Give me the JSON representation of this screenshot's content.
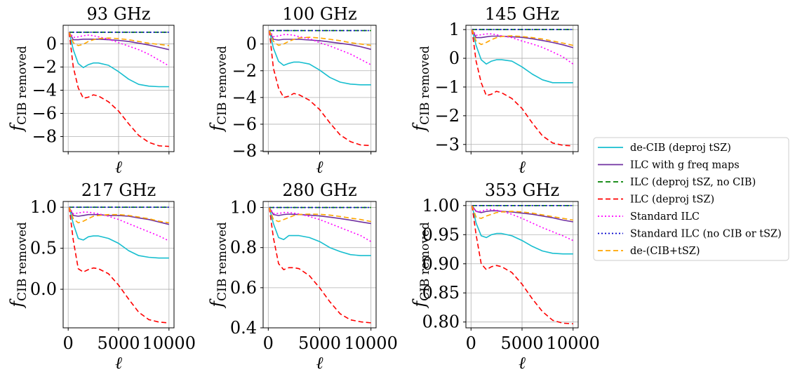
{
  "chart_data": [
    {
      "type": "line",
      "title": "93 GHz",
      "xlabel": "ℓ",
      "ylabel_main": "f",
      "ylabel_sub": "CIB removed",
      "xlim": [
        -500,
        10500
      ],
      "ylim": [
        -9.3,
        1.6
      ],
      "xticks": [
        0,
        5000,
        10000
      ],
      "yticks": [
        0,
        -2,
        -4,
        -6,
        -8
      ],
      "ytick_labels": [
        "0",
        "−2",
        "−4",
        "−6",
        "−8"
      ],
      "show_xtick_labels": false,
      "grid": true,
      "x": [
        100,
        500,
        1000,
        1500,
        2000,
        2500,
        3000,
        4000,
        5000,
        6000,
        7000,
        8000,
        9000,
        10000
      ],
      "series": [
        {
          "name": "de-CIB (deproj tSZ)",
          "values": [
            1,
            -0.5,
            -1.7,
            -2.05,
            -1.8,
            -1.65,
            -1.65,
            -1.85,
            -2.4,
            -3.05,
            -3.5,
            -3.65,
            -3.7,
            -3.7
          ]
        },
        {
          "name": "ILC with g freq maps",
          "values": [
            1,
            0.35,
            0.35,
            0.4,
            0.4,
            0.4,
            0.4,
            0.35,
            0.3,
            0.2,
            0.05,
            -0.1,
            -0.3,
            -0.5
          ]
        },
        {
          "name": "ILC (deproj tSZ, no CIB)",
          "values": [
            1,
            1,
            1,
            1,
            1,
            1,
            1,
            1,
            1,
            1,
            1,
            1,
            1,
            1
          ]
        },
        {
          "name": "ILC (deproj tSZ)",
          "values": [
            1,
            -2.0,
            -3.8,
            -4.7,
            -4.6,
            -4.4,
            -4.5,
            -5.0,
            -5.8,
            -6.9,
            -7.9,
            -8.5,
            -8.8,
            -8.85
          ]
        },
        {
          "name": "Standard ILC",
          "values": [
            1,
            0.55,
            0.6,
            0.7,
            0.75,
            0.7,
            0.6,
            0.4,
            0.1,
            -0.2,
            -0.5,
            -0.9,
            -1.4,
            -1.9
          ]
        },
        {
          "name": "Standard ILC (no CIB or tSZ)",
          "values": [
            1,
            1,
            1,
            1,
            1,
            1,
            1,
            1,
            1,
            1,
            1,
            1,
            1,
            1
          ]
        },
        {
          "name": "de-(CIB+tSZ)",
          "values": [
            1,
            0.1,
            -0.15,
            -0.05,
            0.2,
            0.35,
            0.45,
            0.5,
            0.45,
            0.35,
            0.2,
            0.05,
            -0.05,
            -0.15
          ]
        }
      ]
    },
    {
      "type": "line",
      "title": "100 GHz",
      "xlabel": "ℓ",
      "ylabel_main": "f",
      "ylabel_sub": "CIB removed",
      "xlim": [
        -500,
        10500
      ],
      "ylim": [
        -8.05,
        1.4
      ],
      "xticks": [
        0,
        5000,
        10000
      ],
      "yticks": [
        0,
        -2,
        -4,
        -6,
        -8
      ],
      "ytick_labels": [
        "0",
        "−2",
        "−4",
        "−6",
        "−8"
      ],
      "show_xtick_labels": false,
      "grid": true,
      "x": [
        100,
        500,
        1000,
        1500,
        2000,
        2500,
        3000,
        4000,
        5000,
        6000,
        7000,
        8000,
        9000,
        10000
      ],
      "series": [
        {
          "name": "de-CIB (deproj tSZ)",
          "values": [
            1,
            -0.3,
            -1.3,
            -1.6,
            -1.45,
            -1.35,
            -1.35,
            -1.5,
            -1.95,
            -2.5,
            -2.85,
            -3.0,
            -3.05,
            -3.05
          ]
        },
        {
          "name": "ILC with g freq maps",
          "values": [
            1,
            0.35,
            0.3,
            0.35,
            0.35,
            0.35,
            0.35,
            0.3,
            0.25,
            0.15,
            0.05,
            -0.05,
            -0.2,
            -0.4
          ]
        },
        {
          "name": "ILC (deproj tSZ, no CIB)",
          "values": [
            1,
            1,
            1,
            1,
            1,
            1,
            1,
            1,
            1,
            1,
            1,
            1,
            1,
            1
          ]
        },
        {
          "name": "ILC (deproj tSZ)",
          "values": [
            1,
            -1.8,
            -3.3,
            -4.0,
            -3.9,
            -3.7,
            -3.8,
            -4.2,
            -4.9,
            -5.9,
            -6.8,
            -7.3,
            -7.55,
            -7.6
          ]
        },
        {
          "name": "Standard ILC",
          "values": [
            1,
            0.55,
            0.6,
            0.7,
            0.7,
            0.65,
            0.55,
            0.4,
            0.1,
            -0.15,
            -0.45,
            -0.75,
            -1.15,
            -1.55
          ]
        },
        {
          "name": "Standard ILC (no CIB or tSZ)",
          "values": [
            1,
            1,
            1,
            1,
            1,
            1,
            1,
            1,
            1,
            1,
            1,
            1,
            1,
            1
          ]
        },
        {
          "name": "de-(CIB+tSZ)",
          "values": [
            1,
            0.2,
            -0.1,
            0.0,
            0.2,
            0.35,
            0.45,
            0.5,
            0.45,
            0.35,
            0.25,
            0.1,
            0.0,
            -0.1
          ]
        }
      ]
    },
    {
      "type": "line",
      "title": "145 GHz",
      "xlabel": "ℓ",
      "ylabel_main": "f",
      "ylabel_sub": "CIB removed",
      "xlim": [
        -500,
        10500
      ],
      "ylim": [
        -3.25,
        1.15
      ],
      "xticks": [
        0,
        5000,
        10000
      ],
      "yticks": [
        1,
        0,
        -1,
        -2,
        -3
      ],
      "ytick_labels": [
        "1",
        "0",
        "−1",
        "−2",
        "−3"
      ],
      "show_xtick_labels": false,
      "grid": true,
      "x": [
        100,
        500,
        1000,
        1500,
        2000,
        2500,
        3000,
        4000,
        5000,
        6000,
        7000,
        8000,
        9000,
        10000
      ],
      "series": [
        {
          "name": "de-CIB (deproj tSZ)",
          "values": [
            1,
            0.45,
            -0.05,
            -0.2,
            -0.1,
            -0.05,
            -0.05,
            -0.1,
            -0.3,
            -0.55,
            -0.75,
            -0.85,
            -0.85,
            -0.85
          ]
        },
        {
          "name": "ILC with g freq maps",
          "values": [
            1,
            0.72,
            0.72,
            0.75,
            0.77,
            0.77,
            0.77,
            0.75,
            0.73,
            0.68,
            0.62,
            0.55,
            0.47,
            0.37
          ]
        },
        {
          "name": "ILC (deproj tSZ, no CIB)",
          "values": [
            1,
            1,
            1,
            1,
            1,
            1,
            1,
            1,
            1,
            1,
            1,
            1,
            1,
            1
          ]
        },
        {
          "name": "ILC (deproj tSZ)",
          "values": [
            1,
            -0.1,
            -0.85,
            -1.3,
            -1.25,
            -1.15,
            -1.2,
            -1.4,
            -1.75,
            -2.25,
            -2.7,
            -2.95,
            -3.03,
            -3.05
          ]
        },
        {
          "name": "Standard ILC",
          "values": [
            1,
            0.8,
            0.82,
            0.85,
            0.85,
            0.82,
            0.78,
            0.72,
            0.6,
            0.5,
            0.38,
            0.22,
            0.05,
            -0.2
          ]
        },
        {
          "name": "Standard ILC (no CIB or tSZ)",
          "values": [
            1,
            1,
            1,
            1,
            1,
            1,
            1,
            1,
            1,
            1,
            1,
            1,
            1,
            1
          ]
        },
        {
          "name": "de-(CIB+tSZ)",
          "values": [
            1,
            0.6,
            0.48,
            0.55,
            0.65,
            0.72,
            0.76,
            0.78,
            0.76,
            0.72,
            0.67,
            0.6,
            0.53,
            0.45
          ]
        }
      ]
    },
    {
      "type": "line",
      "title": "217 GHz",
      "xlabel": "ℓ",
      "ylabel_main": "f",
      "ylabel_sub": "CIB removed",
      "xlim": [
        -500,
        10500
      ],
      "ylim": [
        -0.47,
        1.07
      ],
      "xticks": [
        0,
        5000,
        10000
      ],
      "xtick_labels": [
        "0",
        "5000",
        "10000"
      ],
      "yticks": [
        1.0,
        0.5,
        0.0
      ],
      "ytick_labels": [
        "1.0",
        "0.5",
        "0.0"
      ],
      "show_xtick_labels": true,
      "grid": true,
      "x": [
        100,
        500,
        1000,
        1500,
        2000,
        2500,
        3000,
        4000,
        5000,
        6000,
        7000,
        8000,
        9000,
        10000
      ],
      "series": [
        {
          "name": "de-CIB (deproj tSZ)",
          "values": [
            1,
            0.8,
            0.62,
            0.6,
            0.64,
            0.65,
            0.65,
            0.62,
            0.56,
            0.47,
            0.41,
            0.39,
            0.38,
            0.38
          ]
        },
        {
          "name": "ILC with g freq maps",
          "values": [
            1,
            0.9,
            0.89,
            0.9,
            0.91,
            0.91,
            0.91,
            0.9,
            0.9,
            0.89,
            0.87,
            0.85,
            0.82,
            0.79
          ]
        },
        {
          "name": "ILC (deproj tSZ, no CIB)",
          "values": [
            1,
            1,
            1,
            1,
            1,
            1,
            1,
            1,
            1,
            1,
            1,
            1,
            1,
            1
          ]
        },
        {
          "name": "ILC (deproj tSZ)",
          "values": [
            1,
            0.6,
            0.25,
            0.21,
            0.24,
            0.26,
            0.25,
            0.19,
            0.05,
            -0.12,
            -0.28,
            -0.37,
            -0.4,
            -0.41
          ]
        },
        {
          "name": "Standard ILC",
          "values": [
            1,
            0.92,
            0.93,
            0.94,
            0.94,
            0.93,
            0.92,
            0.89,
            0.85,
            0.8,
            0.75,
            0.7,
            0.65,
            0.59
          ]
        },
        {
          "name": "Standard ILC (no CIB or tSZ)",
          "values": [
            1,
            1,
            1,
            1,
            1,
            1,
            1,
            1,
            1,
            1,
            1,
            1,
            1,
            1
          ]
        },
        {
          "name": "de-(CIB+tSZ)",
          "values": [
            1,
            0.86,
            0.81,
            0.83,
            0.86,
            0.89,
            0.9,
            0.91,
            0.91,
            0.9,
            0.88,
            0.86,
            0.83,
            0.81
          ]
        }
      ]
    },
    {
      "type": "line",
      "title": "280 GHz",
      "xlabel": "ℓ",
      "ylabel_main": "f",
      "ylabel_sub": "CIB removed",
      "xlim": [
        -500,
        10500
      ],
      "ylim": [
        0.4,
        1.03
      ],
      "xticks": [
        0,
        5000,
        10000
      ],
      "xtick_labels": [
        "0",
        "5000",
        "10000"
      ],
      "yticks": [
        1.0,
        0.8,
        0.6,
        0.4
      ],
      "ytick_labels": [
        "1.0",
        "0.8",
        "0.6",
        "0.4"
      ],
      "show_xtick_labels": true,
      "grid": true,
      "x": [
        100,
        500,
        1000,
        1500,
        2000,
        2500,
        3000,
        4000,
        5000,
        6000,
        7000,
        8000,
        9000,
        10000
      ],
      "series": [
        {
          "name": "de-CIB (deproj tSZ)",
          "values": [
            1,
            0.92,
            0.85,
            0.84,
            0.86,
            0.86,
            0.86,
            0.85,
            0.83,
            0.8,
            0.78,
            0.765,
            0.76,
            0.76
          ]
        },
        {
          "name": "ILC with g freq maps",
          "values": [
            1,
            0.965,
            0.96,
            0.965,
            0.967,
            0.966,
            0.965,
            0.962,
            0.958,
            0.952,
            0.945,
            0.937,
            0.928,
            0.92
          ]
        },
        {
          "name": "ILC (deproj tSZ, no CIB)",
          "values": [
            1,
            1,
            1,
            1,
            1,
            1,
            1,
            1,
            1,
            1,
            1,
            1,
            1,
            1
          ]
        },
        {
          "name": "ILC (deproj tSZ)",
          "values": [
            1,
            0.85,
            0.72,
            0.69,
            0.7,
            0.7,
            0.695,
            0.66,
            0.6,
            0.53,
            0.47,
            0.44,
            0.43,
            0.425
          ]
        },
        {
          "name": "Standard ILC",
          "values": [
            1,
            0.97,
            0.97,
            0.975,
            0.975,
            0.972,
            0.968,
            0.955,
            0.94,
            0.92,
            0.9,
            0.88,
            0.86,
            0.83
          ]
        },
        {
          "name": "Standard ILC (no CIB or tSZ)",
          "values": [
            1,
            1,
            1,
            1,
            1,
            1,
            1,
            1,
            1,
            1,
            1,
            1,
            1,
            1
          ]
        },
        {
          "name": "de-(CIB+tSZ)",
          "values": [
            1,
            0.94,
            0.93,
            0.94,
            0.95,
            0.96,
            0.965,
            0.967,
            0.966,
            0.962,
            0.955,
            0.947,
            0.94,
            0.93
          ]
        }
      ]
    },
    {
      "type": "line",
      "title": "353 GHz",
      "xlabel": "ℓ",
      "ylabel_main": "f",
      "ylabel_sub": "CIB removed",
      "xlim": [
        -500,
        10500
      ],
      "ylim": [
        0.79,
        1.007
      ],
      "xticks": [
        0,
        5000,
        10000
      ],
      "xtick_labels": [
        "0",
        "5000",
        "10000"
      ],
      "yticks": [
        1.0,
        0.95,
        0.9,
        0.85,
        0.8
      ],
      "ytick_labels": [
        "1.00",
        "0.95",
        "0.90",
        "0.85",
        "0.80"
      ],
      "show_xtick_labels": true,
      "grid": true,
      "x": [
        100,
        500,
        1000,
        1500,
        2000,
        2500,
        3000,
        4000,
        5000,
        6000,
        7000,
        8000,
        9000,
        10000
      ],
      "series": [
        {
          "name": "de-CIB (deproj tSZ)",
          "values": [
            1,
            0.97,
            0.948,
            0.945,
            0.95,
            0.952,
            0.952,
            0.948,
            0.94,
            0.93,
            0.922,
            0.918,
            0.917,
            0.917
          ]
        },
        {
          "name": "ILC with g freq maps",
          "values": [
            1,
            0.99,
            0.988,
            0.99,
            0.991,
            0.991,
            0.99,
            0.989,
            0.987,
            0.985,
            0.982,
            0.979,
            0.975,
            0.972
          ]
        },
        {
          "name": "ILC (deproj tSZ, no CIB)",
          "values": [
            1,
            1,
            1,
            1,
            1,
            1,
            1,
            1,
            1,
            1,
            1,
            1,
            1,
            1
          ]
        },
        {
          "name": "ILC (deproj tSZ)",
          "values": [
            1,
            0.95,
            0.9,
            0.89,
            0.895,
            0.897,
            0.895,
            0.885,
            0.865,
            0.84,
            0.818,
            0.803,
            0.798,
            0.797
          ]
        },
        {
          "name": "Standard ILC",
          "values": [
            1,
            0.99,
            0.99,
            0.993,
            0.993,
            0.992,
            0.99,
            0.985,
            0.978,
            0.97,
            0.962,
            0.955,
            0.948,
            0.94
          ]
        },
        {
          "name": "Standard ILC (no CIB or tSZ)",
          "values": [
            1,
            1,
            1,
            1,
            1,
            1,
            1,
            1,
            1,
            1,
            1,
            1,
            1,
            1
          ]
        },
        {
          "name": "de-(CIB+tSZ)",
          "values": [
            1,
            0.98,
            0.978,
            0.982,
            0.985,
            0.988,
            0.989,
            0.99,
            0.989,
            0.987,
            0.984,
            0.981,
            0.978,
            0.975
          ]
        }
      ]
    }
  ],
  "legend": {
    "placement": "right",
    "entries": [
      {
        "label": "de-CIB (deproj tSZ)",
        "color": "#17becf",
        "style": "solid"
      },
      {
        "label": "ILC with g freq maps",
        "color": "#7030a0",
        "style": "solid"
      },
      {
        "label": "ILC (deproj tSZ, no CIB)",
        "color": "#008000",
        "style": "dashed"
      },
      {
        "label": "ILC (deproj tSZ)",
        "color": "#ff0000",
        "style": "dashed"
      },
      {
        "label": "Standard ILC",
        "color": "#ff00ff",
        "style": "dotted"
      },
      {
        "label": "Standard ILC (no CIB or tSZ)",
        "color": "#0000cd",
        "style": "dotted"
      },
      {
        "label": "de-(CIB+tSZ)",
        "color": "#ffa500",
        "style": "dashed"
      }
    ]
  }
}
